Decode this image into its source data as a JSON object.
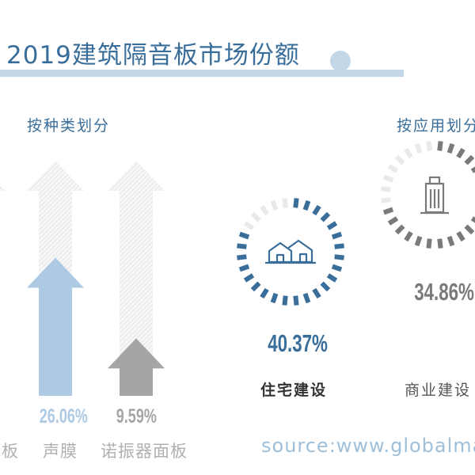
{
  "title": "2019建筑隔音板市场份额",
  "source": "source:www.globalmar",
  "colors": {
    "blue": "#3a6e9a",
    "light_blue": "#adc9e4",
    "gray": "#a5a5a5",
    "ghost": "#e9e9e9",
    "dark_gray": "#7a7a7a"
  },
  "chart_data": [
    {
      "type": "bar",
      "title": "按种类划分",
      "categories": [
        "面板",
        "声膜",
        "诺振器面板"
      ],
      "values": [
        null,
        26.06,
        9.59
      ],
      "value_labels": [
        "",
        "26.06%",
        "9.59%"
      ],
      "unit": "%"
    },
    {
      "type": "pie",
      "title": "按应用划分",
      "categories": [
        "住宅建设",
        "商业建设"
      ],
      "values": [
        40.37,
        34.86
      ],
      "value_labels": [
        "40.37%",
        "34.86%"
      ],
      "unit": "%"
    }
  ],
  "icons": [
    "house-icon",
    "building-icon"
  ]
}
